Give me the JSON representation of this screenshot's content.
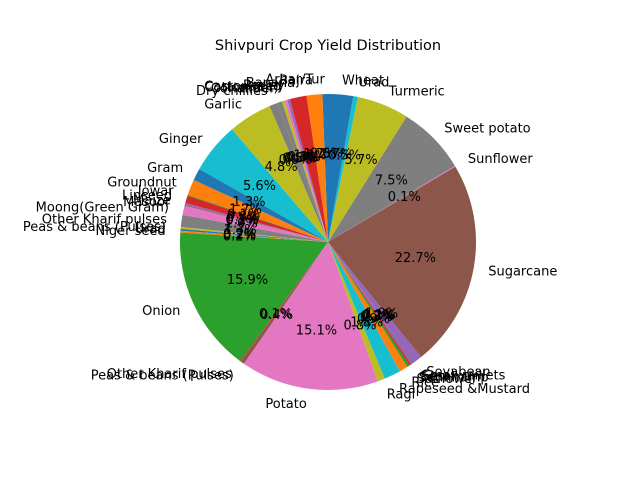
{
  "chart_data": {
    "type": "pie",
    "title": "Shivpuri Crop Yield Distribution",
    "start_angle_deg": 90,
    "direction": "counterclockwise",
    "autopct_format": "%.1f%%",
    "slices": [
      {
        "label": "Arhar/Tur",
        "value": 0.6,
        "color": "#1f77b4"
      },
      {
        "label": "Bajra",
        "value": 1.7,
        "color": "#ff7f0e"
      },
      {
        "label": "Banana",
        "value": 1.8,
        "color": "#d62728"
      },
      {
        "label": "Barley",
        "value": 0.3,
        "color": "#9467bd"
      },
      {
        "label": "Castor seed",
        "value": 0.3,
        "color": "#e377c2"
      },
      {
        "label": "Cotton(lint)",
        "value": 0.3,
        "color": "#bcbd22"
      },
      {
        "label": "Coriander",
        "value": 0.5,
        "color": "#7f7f7f"
      },
      {
        "label": "Dry chillies",
        "value": 0.9,
        "color": "#7f7f7f"
      },
      {
        "label": "Garlic",
        "value": 4.7,
        "color": "#bcbd22"
      },
      {
        "label": "Ginger",
        "value": 5.5,
        "color": "#17becf"
      },
      {
        "label": "Gram",
        "value": 1.3,
        "color": "#1f77b4"
      },
      {
        "label": "Groundnut",
        "value": 1.7,
        "color": "#ff7f0e"
      },
      {
        "label": "Jowar",
        "value": 0.1,
        "color": "#2ca02c"
      },
      {
        "label": "Linseed",
        "value": 0.8,
        "color": "#d62728"
      },
      {
        "label": "Maize",
        "value": 0.2,
        "color": "#9467bd"
      },
      {
        "label": "Masoor",
        "value": 0.1,
        "color": "#8c564b"
      },
      {
        "label": "Moong(Green Gram)",
        "value": 1.0,
        "color": "#e377c2"
      },
      {
        "label": "Other Kharif pulses",
        "value": 1.3,
        "color": "#7f7f7f"
      },
      {
        "label": "Peas & beans (Pulses)",
        "value": 0.2,
        "color": "#bcbd22"
      },
      {
        "label": "Urad",
        "value": 0.2,
        "color": "#1f77b4"
      },
      {
        "label": "Niger seed",
        "value": 0.2,
        "color": "#ff7f0e"
      },
      {
        "label": "Onion",
        "value": 15.7,
        "color": "#2ca02c"
      },
      {
        "label": "Other Kharif pulses",
        "value": 0.1,
        "color": "#d62728"
      },
      {
        "label": "Peas & beans (Pulses)",
        "value": 0.4,
        "color": "#8c564b"
      },
      {
        "label": "Potato",
        "value": 14.9,
        "color": "#e377c2"
      },
      {
        "label": "Ragi",
        "value": 0.8,
        "color": "#bcbd22"
      },
      {
        "label": "Rapeseed &Mustard",
        "value": 1.8,
        "color": "#17becf"
      },
      {
        "label": "Rice",
        "value": 0.9,
        "color": "#ff7f0e"
      },
      {
        "label": "Safflower",
        "value": 0.3,
        "color": "#2ca02c"
      },
      {
        "label": "Sannhamp",
        "value": 0.2,
        "color": "#d62728"
      },
      {
        "label": "Sesamum",
        "value": 0.2,
        "color": "#9467bd"
      },
      {
        "label": "Small millets",
        "value": 0.1,
        "color": "#8c564b"
      },
      {
        "label": "Soyabean",
        "value": 1.0,
        "color": "#9467bd"
      },
      {
        "label": "Sugarcane",
        "value": 22.4,
        "color": "#8c564b"
      },
      {
        "label": "Sunflower",
        "value": 0.1,
        "color": "#e377c2"
      },
      {
        "label": "Sweet potato",
        "value": 7.4,
        "color": "#7f7f7f"
      },
      {
        "label": "Turmeric",
        "value": 5.6,
        "color": "#bcbd22"
      },
      {
        "label": "Urad",
        "value": 0.5,
        "color": "#17becf"
      },
      {
        "label": "Wheat",
        "value": 2.7,
        "color": "#1f77b4"
      }
    ]
  }
}
